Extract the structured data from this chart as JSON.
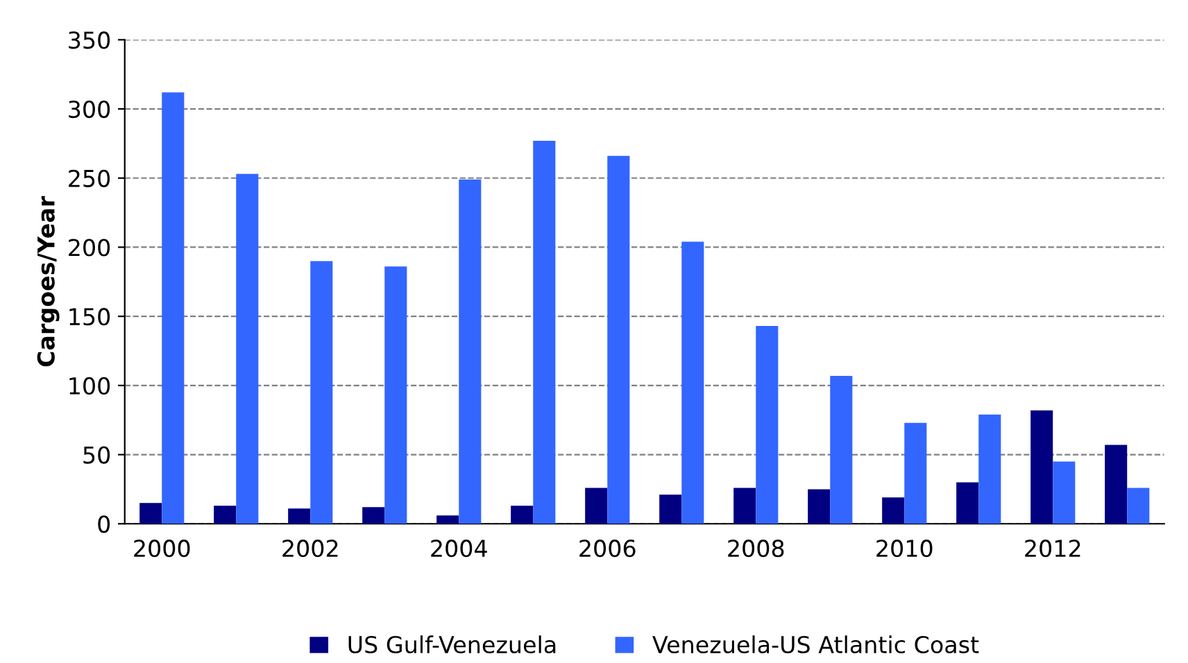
{
  "chart_data": {
    "type": "bar",
    "ylabel": "Cargoes/Year",
    "categories": [
      "2000",
      null,
      "2002",
      null,
      "2004",
      null,
      "2006",
      null,
      "2008",
      null,
      "2010",
      null,
      "2012",
      null
    ],
    "series": [
      {
        "name": "US Gulf-Venezuela",
        "color": "#000080",
        "values": [
          15,
          13,
          11,
          12,
          6,
          13,
          26,
          21,
          26,
          25,
          19,
          30,
          82,
          57
        ]
      },
      {
        "name": "Venezuela-US Atlantic Coast",
        "color": "#3366ff",
        "values": [
          312,
          253,
          190,
          186,
          249,
          277,
          266,
          204,
          143,
          107,
          73,
          79,
          45,
          26
        ]
      }
    ],
    "ylim": [
      0,
      350
    ],
    "yticks": [
      0,
      50,
      100,
      150,
      200,
      250,
      300,
      350
    ],
    "grid": "y",
    "legend": "bottom"
  }
}
